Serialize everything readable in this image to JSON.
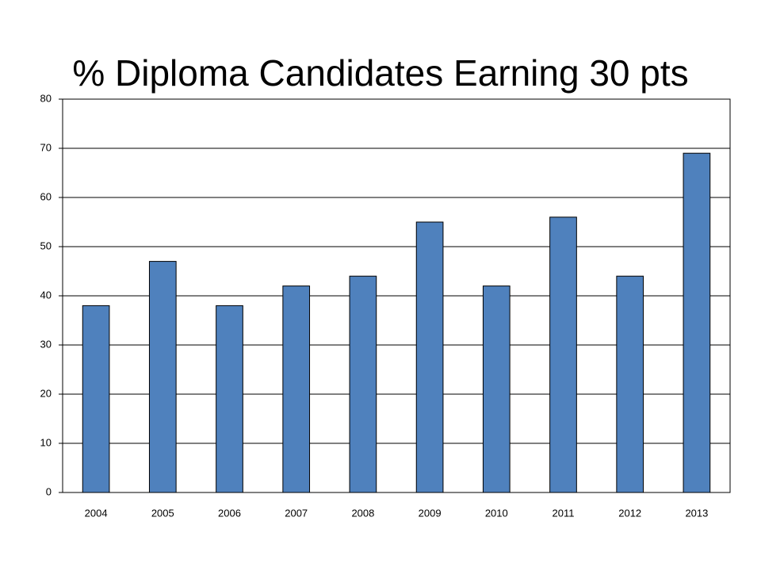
{
  "chart_data": {
    "type": "bar",
    "title": "% Diploma Candidates Earning 30 pts",
    "categories": [
      "2004",
      "2005",
      "2006",
      "2007",
      "2008",
      "2009",
      "2010",
      "2011",
      "2012",
      "2013"
    ],
    "values": [
      38,
      47,
      38,
      42,
      44,
      55,
      42,
      56,
      44,
      69
    ],
    "color": "#4f81bd",
    "ylim": [
      0,
      80
    ],
    "yticks": [
      0,
      10,
      20,
      30,
      40,
      50,
      60,
      70,
      80
    ],
    "grid": true
  }
}
